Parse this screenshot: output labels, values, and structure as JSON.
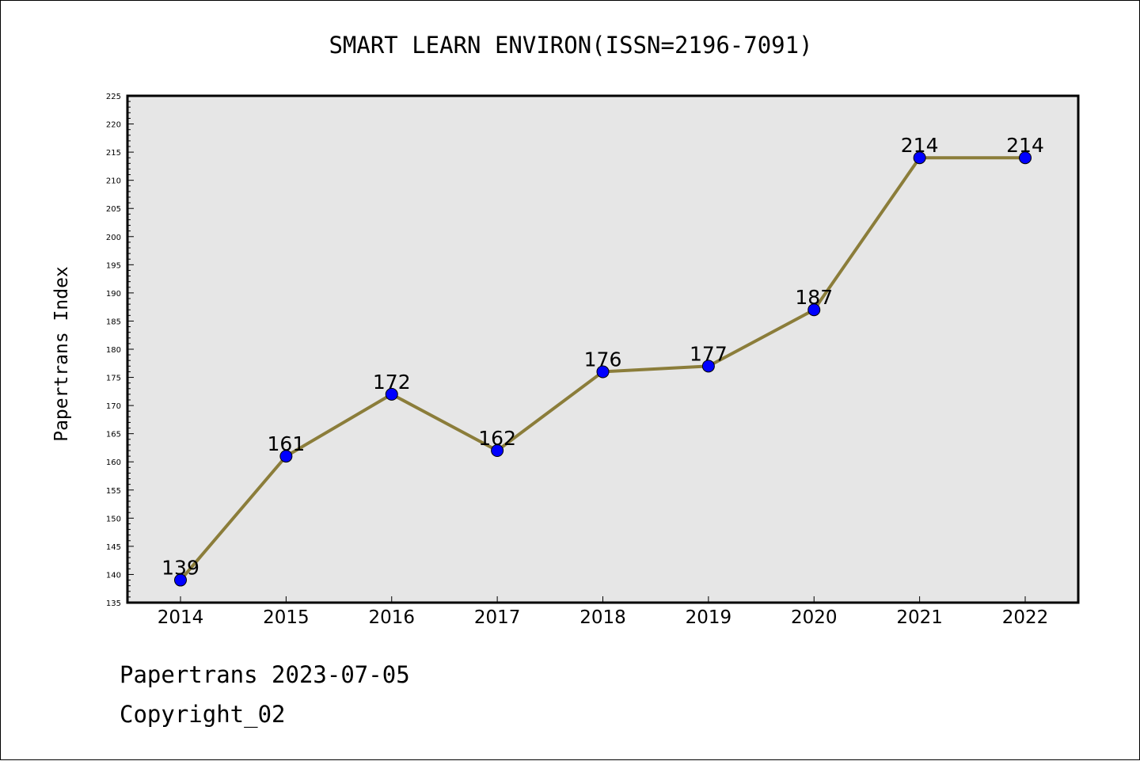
{
  "chart_data": {
    "type": "line",
    "title": "SMART LEARN ENVIRON(ISSN=2196-7091)",
    "xlabel": "",
    "ylabel": "Papertrans Index",
    "categories": [
      "2014",
      "2015",
      "2016",
      "2017",
      "2018",
      "2019",
      "2020",
      "2021",
      "2022"
    ],
    "series": [
      {
        "values": [
          139,
          161,
          172,
          162,
          176,
          177,
          187,
          214,
          214
        ]
      }
    ],
    "data_labels": [
      "139",
      "161",
      "172",
      "162",
      "176",
      "177",
      "187",
      "214",
      "214"
    ],
    "ylim": [
      135,
      225
    ],
    "y_major_step": 5,
    "y_minor_step": 1,
    "grid": false,
    "colors": {
      "line": "#8b7d3a",
      "marker": "#0000ff",
      "plot_background": "#e6e6e6"
    }
  },
  "footer": {
    "source": "Papertrans 2023-07-05",
    "copyright": "Copyright_02"
  }
}
